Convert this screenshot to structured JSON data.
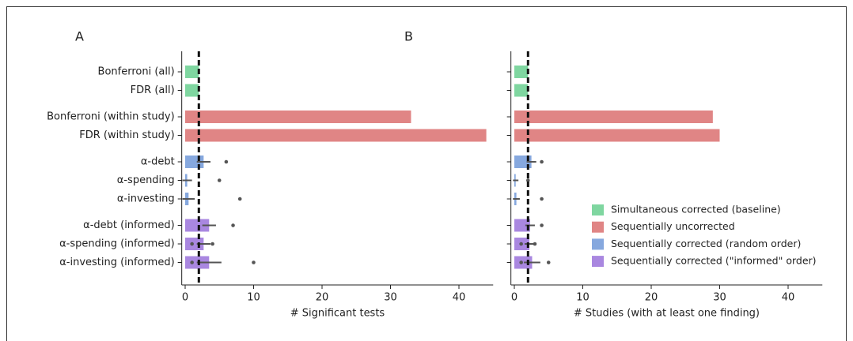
{
  "chart_data": [
    {
      "type": "bar",
      "panel": "A",
      "xlabel": "# Significant tests",
      "categories": [
        "Bonferroni (all)",
        "FDR (all)",
        "Bonferroni (within study)",
        "FDR (within study)",
        "α-debt",
        "α-spending",
        "α-investing",
        "α-debt (informed)",
        "α-spending (informed)",
        "α-investing (informed)"
      ],
      "series": [
        {
          "color": "#7fd6a0",
          "values": [
            2,
            2,
            null,
            null,
            null,
            null,
            null,
            null,
            null,
            null
          ]
        },
        {
          "color": "#e08585",
          "values": [
            null,
            null,
            33,
            44,
            null,
            null,
            null,
            null,
            null,
            null
          ]
        },
        {
          "color": "#86a8de",
          "values": [
            null,
            null,
            null,
            null,
            2.7,
            0.3,
            0.5,
            null,
            null,
            null
          ],
          "errors": [
            null,
            null,
            null,
            null,
            1,
            0.7,
            0.9,
            null,
            null,
            null
          ]
        },
        {
          "color": "#a987e0",
          "values": [
            null,
            null,
            null,
            null,
            null,
            null,
            null,
            3.5,
            2.7,
            3.5
          ],
          "errors": [
            null,
            null,
            null,
            null,
            null,
            null,
            null,
            1,
            1,
            1.8
          ]
        }
      ],
      "points": [
        [],
        [],
        [],
        [],
        [
          6
        ],
        [
          5
        ],
        [
          8
        ],
        [
          7
        ],
        [
          1,
          4
        ],
        [
          1,
          10
        ]
      ],
      "reference_line": 2,
      "xlim": [
        -0.5,
        45
      ],
      "xticks": [
        0,
        10,
        20,
        30,
        40
      ]
    },
    {
      "type": "bar",
      "panel": "B",
      "xlabel": "# Studies (with at least one finding)",
      "categories": [
        "Bonferroni (all)",
        "FDR (all)",
        "Bonferroni (within study)",
        "FDR (within study)",
        "α-debt",
        "α-spending",
        "α-investing",
        "α-debt (informed)",
        "α-spending (informed)",
        "α-investing (informed)"
      ],
      "series": [
        {
          "color": "#7fd6a0",
          "values": [
            2,
            2,
            null,
            null,
            null,
            null,
            null,
            null,
            null,
            null
          ]
        },
        {
          "color": "#e08585",
          "values": [
            null,
            null,
            29,
            30,
            null,
            null,
            null,
            null,
            null,
            null
          ]
        },
        {
          "color": "#86a8de",
          "values": [
            null,
            null,
            null,
            null,
            2.5,
            0.2,
            0.3,
            null,
            null,
            null
          ],
          "errors": [
            null,
            null,
            null,
            null,
            0.7,
            0.4,
            0.5,
            null,
            null,
            null
          ]
        },
        {
          "color": "#a987e0",
          "values": [
            null,
            null,
            null,
            null,
            null,
            null,
            null,
            2.3,
            2.2,
            2.6
          ],
          "errors": [
            null,
            null,
            null,
            null,
            null,
            null,
            null,
            0.7,
            0.7,
            1.2
          ]
        }
      ],
      "points": [
        [],
        [],
        [],
        [],
        [
          4
        ],
        [
          2
        ],
        [
          4
        ],
        [
          4
        ],
        [
          1,
          3
        ],
        [
          1,
          5
        ]
      ],
      "reference_line": 2,
      "xlim": [
        -0.5,
        45
      ],
      "xticks": [
        0,
        10,
        20,
        30,
        40
      ]
    }
  ],
  "legend": {
    "position": "lower right",
    "entries": [
      {
        "name": "Simultaneous corrected (baseline)",
        "color": "#7fd6a0"
      },
      {
        "name": "Sequentially uncorrected",
        "color": "#e08585"
      },
      {
        "name": "Sequentially corrected (random order)",
        "color": "#86a8de"
      },
      {
        "name": "Sequentially corrected (\"informed\" order)",
        "color": "#a987e0"
      }
    ]
  }
}
